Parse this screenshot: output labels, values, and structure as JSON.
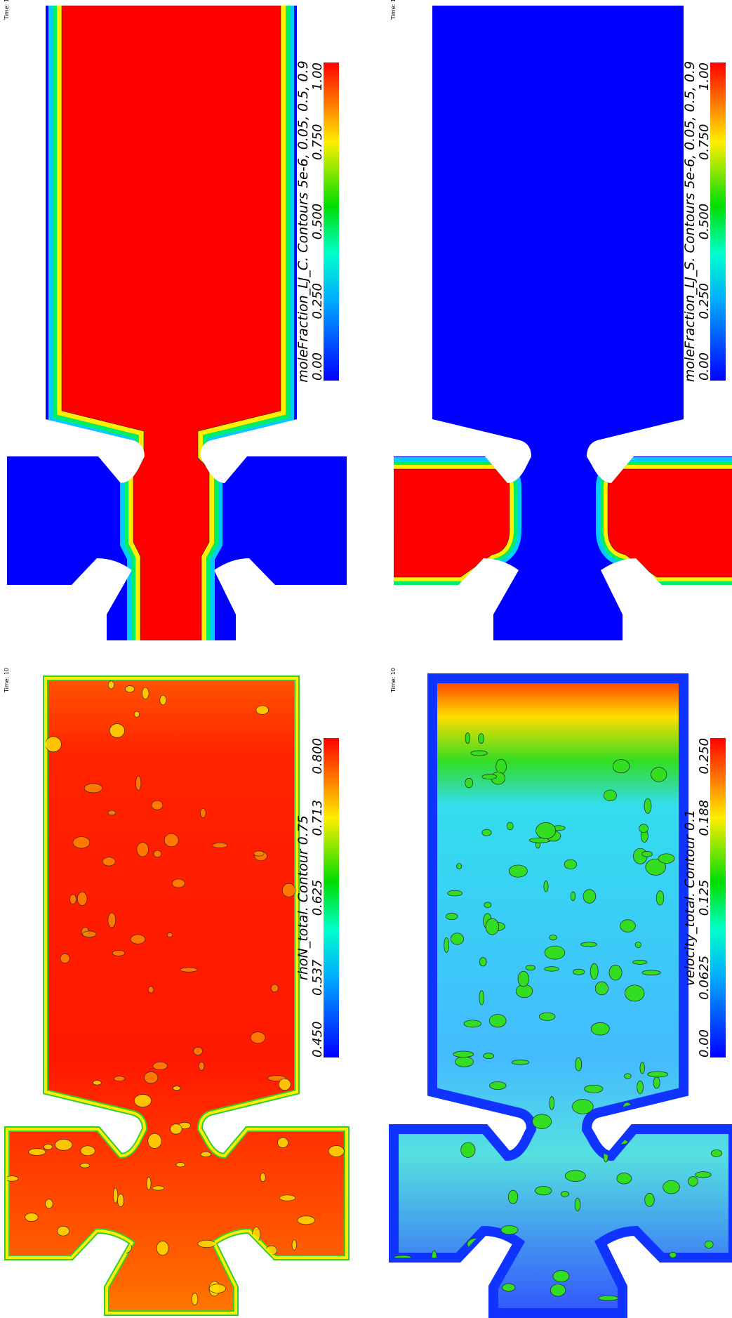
{
  "panels": [
    {
      "time": "Time: 10",
      "colorbar": {
        "title": "moleFraction_LJ_C. Contours 5e-6, 0.05, 0.5, 0.9",
        "ticks": [
          "0.00",
          "0.250",
          "0.500",
          "0.750",
          "1.00"
        ]
      }
    },
    {
      "time": "Time: 10",
      "colorbar": {
        "title": "moleFraction_LJ_S.  Contours 5e-6, 0.05, 0.5, 0.9",
        "ticks": [
          "0.00",
          "0.250",
          "0.500",
          "0.750",
          "1.00"
        ]
      }
    },
    {
      "time": "Time: 10",
      "colorbar": {
        "title": "rhoN_total. Contour 0.75",
        "ticks": [
          "0.450",
          "0.537",
          "0.625",
          "0.713",
          "0.800"
        ]
      }
    },
    {
      "time": "Time: 10",
      "colorbar": {
        "title": "velocity_total. Contour 0.1",
        "ticks": [
          "0.00",
          "0.0625",
          "0.125",
          "0.188",
          "0.250"
        ]
      }
    }
  ]
}
